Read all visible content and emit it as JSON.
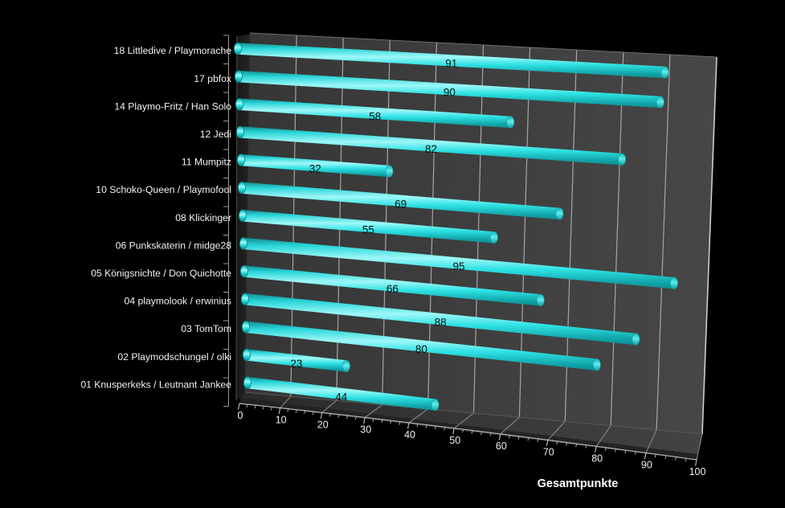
{
  "chart_data": {
    "type": "bar",
    "orientation": "horizontal",
    "style": "3d-cylinder",
    "title": "",
    "xlabel": "Gesamtpunkte",
    "ylabel": "",
    "xlim": [
      0,
      100
    ],
    "x_tick_step": 10,
    "x_minor_tick_step": 2,
    "grid": true,
    "legend": "none",
    "categories": [
      "18 Littledive / Playmorache",
      "17 pbfox",
      "14 Playmo-Fritz / Han Solo",
      "12 Jedi",
      "11 Mumpitz",
      "10 Schoko-Queen / Playmofool",
      "08 Klickinger",
      "06 Punkskaterin / midge28",
      "05 Königsnichte / Don Quichotte",
      "04 playmolook / erwinius",
      "03 TomTom",
      "02 Playmodschungel / olki",
      "01 Knusperkeks / Leutnant Jankee"
    ],
    "values": [
      91,
      90,
      58,
      82,
      32,
      69,
      55,
      95,
      66,
      88,
      80,
      23,
      44
    ],
    "x_ticks": [
      0,
      10,
      20,
      30,
      40,
      50,
      60,
      70,
      80,
      90,
      100
    ],
    "colors": {
      "background": "#000000",
      "bar_main": "#2BDDE0",
      "bar_highlight": "#9FF7F8",
      "bar_shadow": "#0B8F93",
      "wall": "#3E3E3E",
      "floor": "#2F2F2F",
      "side_wall": "#1F1F1F",
      "gridline": "#A6A6A6",
      "edge_highlight": "#CDCDCD",
      "axis_line": "#9A9A9A",
      "category_text": "#F2F2F2",
      "tick_text": "#EFEFEF",
      "value_text": "#0E0E0E",
      "axis_title_text": "#FFFFFF"
    }
  }
}
